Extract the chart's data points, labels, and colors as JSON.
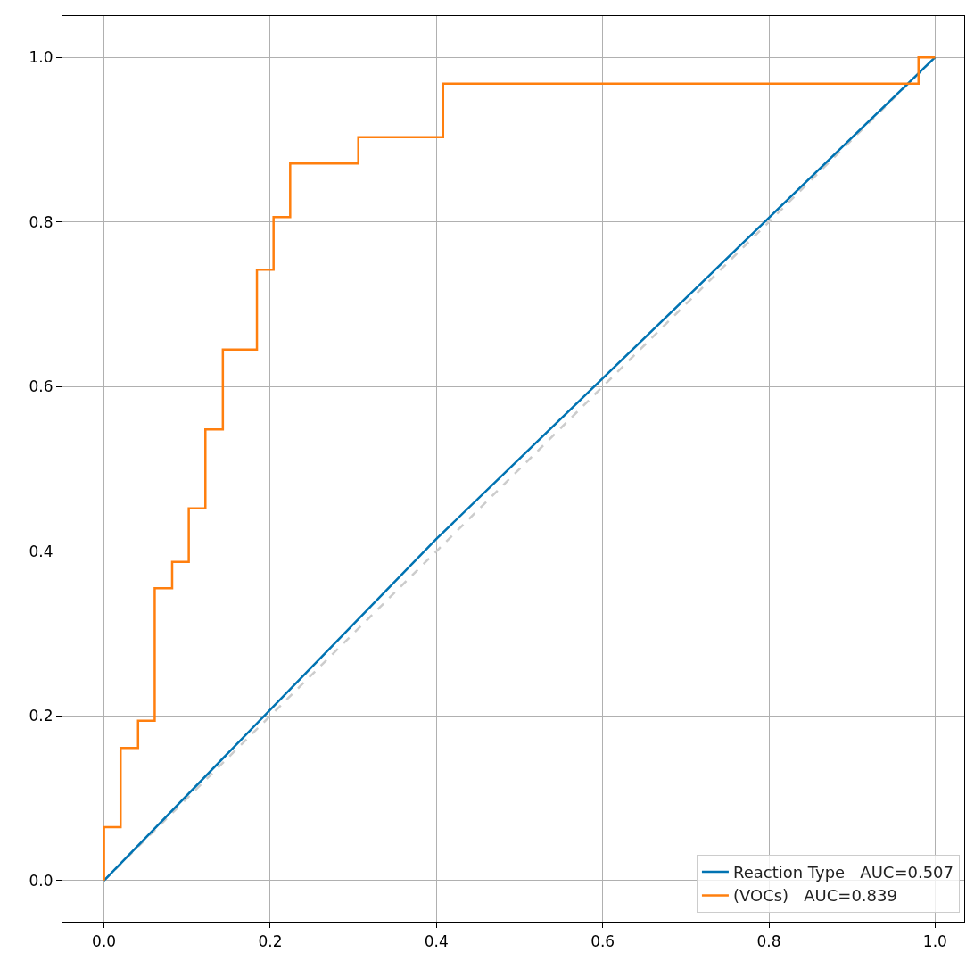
{
  "chart_data": {
    "type": "line",
    "series": [
      {
        "name": "Reaction Type   AUC=0.507",
        "color": "#0173b2",
        "x": [
          0,
          0.4,
          1
        ],
        "values": [
          0,
          0.415,
          1
        ]
      },
      {
        "name": "(VOCs)   AUC=0.839",
        "color": "#ff7f0e",
        "x": [
          0,
          0,
          0.02,
          0.02,
          0.041,
          0.041,
          0.061,
          0.061,
          0.082,
          0.082,
          0.102,
          0.102,
          0.122,
          0.122,
          0.143,
          0.143,
          0.184,
          0.184,
          0.204,
          0.204,
          0.224,
          0.224,
          0.306,
          0.306,
          0.408,
          0.408,
          0.98,
          0.98,
          1
        ],
        "values": [
          0,
          0.065,
          0.065,
          0.161,
          0.161,
          0.194,
          0.194,
          0.355,
          0.355,
          0.387,
          0.387,
          0.452,
          0.452,
          0.548,
          0.548,
          0.645,
          0.645,
          0.742,
          0.742,
          0.806,
          0.806,
          0.871,
          0.871,
          0.903,
          0.903,
          0.968,
          0.968,
          1,
          1
        ]
      },
      {
        "color": "#cccccc",
        "line_style": "dashed",
        "x": [
          0,
          1
        ],
        "values": [
          0,
          1
        ]
      }
    ],
    "xlim": [
      -0.05,
      1.035
    ],
    "ylim": [
      -0.05,
      1.05
    ],
    "xticks": [
      {
        "value": 0,
        "label": "0.0"
      },
      0.2,
      0.4,
      0.6,
      0.8,
      {
        "value": 1,
        "label": "1.0"
      }
    ],
    "yticks": [
      {
        "value": 0,
        "label": "0.0"
      },
      0.2,
      0.4,
      0.6,
      0.8,
      {
        "value": 1,
        "label": "1.0"
      }
    ],
    "grid": true,
    "legend": "bottom right",
    "line_style": "solid",
    "marker": "none"
  }
}
